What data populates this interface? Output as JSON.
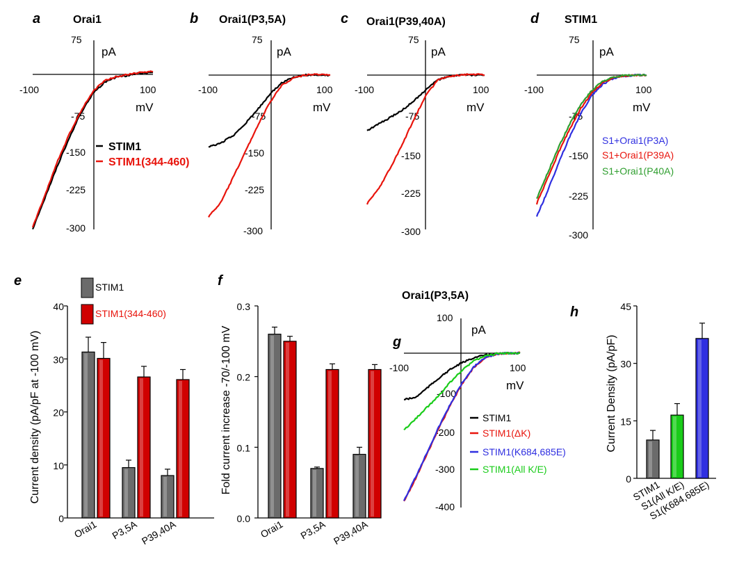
{
  "colors": {
    "black": "#000000",
    "red": "#e8140c",
    "blue": "#2f2fe0",
    "green": "#2e9e2e",
    "brightgreen": "#19cc19",
    "gray": "#6b6b6b",
    "darkred": "#d00000"
  },
  "chart_data": [
    {
      "id": "a",
      "type": "line",
      "panel_label": "a",
      "title": "Orai1",
      "xlim": [
        -100,
        100
      ],
      "ylim": [
        -300,
        75
      ],
      "x_ticks": [
        "-100",
        "100"
      ],
      "y_ticks": [
        "75",
        "-75",
        "-150",
        "-225",
        "-300"
      ],
      "xunit": "mV",
      "yunit": "pA",
      "series": [
        {
          "name": "STIM1",
          "color": "black",
          "x": [
            -100,
            -80,
            -60,
            -40,
            -20,
            0,
            20,
            40,
            60,
            80,
            100
          ],
          "y": [
            -300,
            -240,
            -180,
            -125,
            -75,
            -37,
            -15,
            -5,
            -2,
            3,
            4
          ]
        },
        {
          "name": "STIM1(344-460)",
          "color": "red",
          "x": [
            -100,
            -80,
            -60,
            -40,
            -20,
            0,
            20,
            40,
            60,
            80,
            100
          ],
          "y": [
            -295,
            -235,
            -172,
            -118,
            -72,
            -33,
            -12,
            -4,
            0,
            4,
            6
          ]
        }
      ]
    },
    {
      "id": "b",
      "type": "line",
      "panel_label": "b",
      "title": "Orai1(P3,5A)",
      "xlim": [
        -100,
        100
      ],
      "ylim": [
        -300,
        75
      ],
      "x_ticks": [
        "-100",
        "100"
      ],
      "y_ticks": [
        "75",
        "-75",
        "-150",
        "-225",
        "-300"
      ],
      "xunit": "mV",
      "yunit": "pA",
      "series": [
        {
          "name": "STIM1",
          "color": "black",
          "x": [
            -100,
            -80,
            -60,
            -40,
            -20,
            0,
            20,
            40,
            60,
            80,
            100
          ],
          "y": [
            -140,
            -132,
            -118,
            -95,
            -68,
            -38,
            -15,
            -4,
            0,
            0,
            0
          ]
        },
        {
          "name": "STIM1(344-460)",
          "color": "red",
          "x": [
            -100,
            -80,
            -60,
            -40,
            -20,
            0,
            20,
            40,
            60,
            80,
            100
          ],
          "y": [
            -275,
            -248,
            -200,
            -150,
            -100,
            -55,
            -20,
            -5,
            0,
            2,
            0
          ]
        }
      ]
    },
    {
      "id": "c",
      "type": "line",
      "panel_label": "c",
      "title": "Orai1(P39,40A)",
      "xlim": [
        -100,
        100
      ],
      "ylim": [
        -300,
        75
      ],
      "x_ticks": [
        "-100",
        "100"
      ],
      "y_ticks": [
        "75",
        "-75",
        "-150",
        "-225",
        "-300"
      ],
      "xunit": "mV",
      "yunit": "pA",
      "series": [
        {
          "name": "STIM1",
          "color": "black",
          "x": [
            -100,
            -80,
            -60,
            -40,
            -20,
            0,
            20,
            40,
            60,
            80,
            100
          ],
          "y": [
            -108,
            -95,
            -82,
            -68,
            -50,
            -28,
            -10,
            -2,
            0,
            0,
            0
          ]
        },
        {
          "name": "STIM1(344-460)",
          "color": "red",
          "x": [
            -100,
            -80,
            -60,
            -40,
            -20,
            0,
            20,
            40,
            60,
            80,
            100
          ],
          "y": [
            -250,
            -220,
            -180,
            -135,
            -85,
            -40,
            -10,
            -2,
            0,
            2,
            0
          ]
        }
      ]
    },
    {
      "id": "d",
      "type": "line",
      "panel_label": "d",
      "title": "STIM1",
      "xlim": [
        -100,
        100
      ],
      "ylim": [
        -300,
        75
      ],
      "x_ticks": [
        "-100",
        "100"
      ],
      "y_ticks": [
        "75",
        "-75",
        "-150",
        "-225",
        "-300"
      ],
      "xunit": "mV",
      "yunit": "pA",
      "series": [
        {
          "name": "S1+Orai1(P3A)",
          "color": "blue",
          "x": [
            -100,
            -80,
            -60,
            -40,
            -20,
            0,
            20,
            40,
            60,
            80,
            100
          ],
          "y": [
            -275,
            -225,
            -170,
            -120,
            -75,
            -40,
            -18,
            -6,
            -2,
            0,
            0
          ]
        },
        {
          "name": "S1+Orai1(P39A)",
          "color": "red",
          "x": [
            -100,
            -80,
            -60,
            -40,
            -20,
            0,
            20,
            40,
            60,
            80,
            100
          ],
          "y": [
            -250,
            -200,
            -150,
            -105,
            -65,
            -35,
            -15,
            -5,
            -2,
            0,
            0
          ]
        },
        {
          "name": "S1+Orai1(P40A)",
          "color": "green",
          "x": [
            -100,
            -80,
            -60,
            -40,
            -20,
            0,
            20,
            40,
            60,
            80,
            100
          ],
          "y": [
            -240,
            -190,
            -140,
            -95,
            -58,
            -30,
            -12,
            -4,
            0,
            0,
            0
          ]
        }
      ]
    },
    {
      "id": "e",
      "type": "bar",
      "panel_label": "e",
      "ylabel": "Current density (pA/pF at -100 mV)",
      "ylim": [
        0,
        40
      ],
      "y_ticks": [
        "0",
        "10",
        "20",
        "30",
        "40"
      ],
      "categories": [
        "Orai1",
        "P3,5A",
        "P39,40A"
      ],
      "series": [
        {
          "name": "STIM1",
          "color": "gray",
          "values": [
            31.3,
            9.5,
            8.0
          ],
          "errors": [
            2.8,
            1.4,
            1.2
          ]
        },
        {
          "name": "STIM1(344-460)",
          "color": "darkred",
          "values": [
            30.1,
            26.6,
            26.1
          ],
          "errors": [
            3.0,
            2.0,
            1.9
          ]
        }
      ]
    },
    {
      "id": "f",
      "type": "bar",
      "panel_label": "f",
      "ylabel": "Fold current increase -70/-100 mV",
      "ylim": [
        0,
        0.3
      ],
      "y_ticks": [
        "0.0",
        "0.1",
        "0.2",
        "0.3"
      ],
      "categories": [
        "Orai1",
        "P3,5A",
        "P39,40A"
      ],
      "series": [
        {
          "name": "STIM1",
          "color": "gray",
          "values": [
            0.26,
            0.07,
            0.09
          ],
          "errors": [
            0.01,
            0.002,
            0.01
          ]
        },
        {
          "name": "STIM1(344-460)",
          "color": "darkred",
          "values": [
            0.25,
            0.21,
            0.21
          ],
          "errors": [
            0.007,
            0.008,
            0.007
          ]
        }
      ]
    },
    {
      "id": "g",
      "type": "line",
      "panel_label": "g",
      "title": "Orai1(P3,5A)",
      "xlim": [
        -100,
        100
      ],
      "ylim": [
        -400,
        100
      ],
      "x_ticks": [
        "-100",
        "100"
      ],
      "y_ticks": [
        "100",
        "-100",
        "-200",
        "-300",
        "-400"
      ],
      "xunit": "mV",
      "yunit": "pA",
      "series": [
        {
          "name": "STIM1",
          "color": "black",
          "x": [
            -100,
            -80,
            -60,
            -40,
            -20,
            0,
            20,
            40,
            60,
            80,
            100
          ],
          "y": [
            -120,
            -115,
            -90,
            -65,
            -42,
            -25,
            -12,
            -5,
            -1,
            0,
            0
          ]
        },
        {
          "name": "STIM1(ΔK)",
          "color": "red",
          "x": [
            -100,
            -80,
            -60,
            -40,
            -20,
            0,
            20,
            40,
            60,
            80,
            100
          ],
          "y": [
            -385,
            -325,
            -260,
            -195,
            -135,
            -80,
            -38,
            -12,
            -2,
            0,
            2
          ]
        },
        {
          "name": "STIM1(K684,685E)",
          "color": "blue",
          "x": [
            -100,
            -80,
            -60,
            -40,
            -20,
            0,
            20,
            40,
            60,
            80,
            100
          ],
          "y": [
            -382,
            -322,
            -257,
            -192,
            -132,
            -78,
            -36,
            -11,
            -2,
            0,
            0
          ]
        },
        {
          "name": "STIM1(All K/E)",
          "color": "brightgreen",
          "x": [
            -100,
            -80,
            -60,
            -40,
            -20,
            0,
            20,
            40,
            60,
            80,
            100
          ],
          "y": [
            -200,
            -170,
            -140,
            -110,
            -75,
            -45,
            -20,
            -7,
            -1,
            0,
            0
          ]
        }
      ]
    },
    {
      "id": "h",
      "type": "bar",
      "panel_label": "h",
      "ylabel": "Current Density (pA/pF)",
      "ylim": [
        0,
        45
      ],
      "y_ticks": [
        "0",
        "15",
        "30",
        "45"
      ],
      "categories": [
        "STIM1",
        "S1(All K/E)",
        "S1(K684,685E)"
      ],
      "category_colors": [
        "black",
        "brightgreen",
        "blue"
      ],
      "values": [
        10,
        16.5,
        36.5
      ],
      "errors": [
        2.5,
        3.0,
        4.0
      ],
      "bar_colors": [
        "gray",
        "brightgreen",
        "blue"
      ]
    }
  ]
}
